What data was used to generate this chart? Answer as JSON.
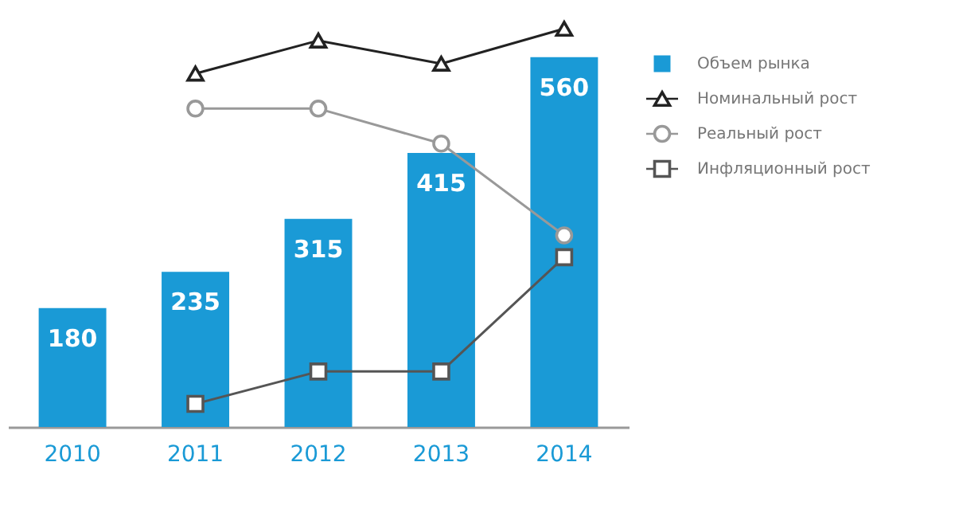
{
  "chart_data": {
    "type": "bar",
    "categories": [
      "2010",
      "2011",
      "2012",
      "2013",
      "2014"
    ],
    "series": [
      {
        "name": "Объем рынка",
        "color": "#1a9ad6",
        "values": [
          180,
          235,
          315,
          415,
          560
        ],
        "value_labels": [
          "180",
          "235",
          "315",
          "415",
          "560"
        ]
      },
      {
        "name": "Номинальный рост",
        "type": "line",
        "color": "#222222",
        "marker": "triangle",
        "values": [
          null,
          535,
          585,
          550,
          603
        ]
      },
      {
        "name": "Реальный рост",
        "type": "line",
        "color": "#999999",
        "marker": "circle",
        "values": [
          null,
          482,
          482,
          429,
          290
        ]
      },
      {
        "name": "Инфляционный рост",
        "type": "line",
        "color": "#555555",
        "marker": "square",
        "values": [
          null,
          35,
          84,
          84,
          257
        ]
      }
    ],
    "legend": "top right",
    "grid": false,
    "tick_labels": "x"
  }
}
